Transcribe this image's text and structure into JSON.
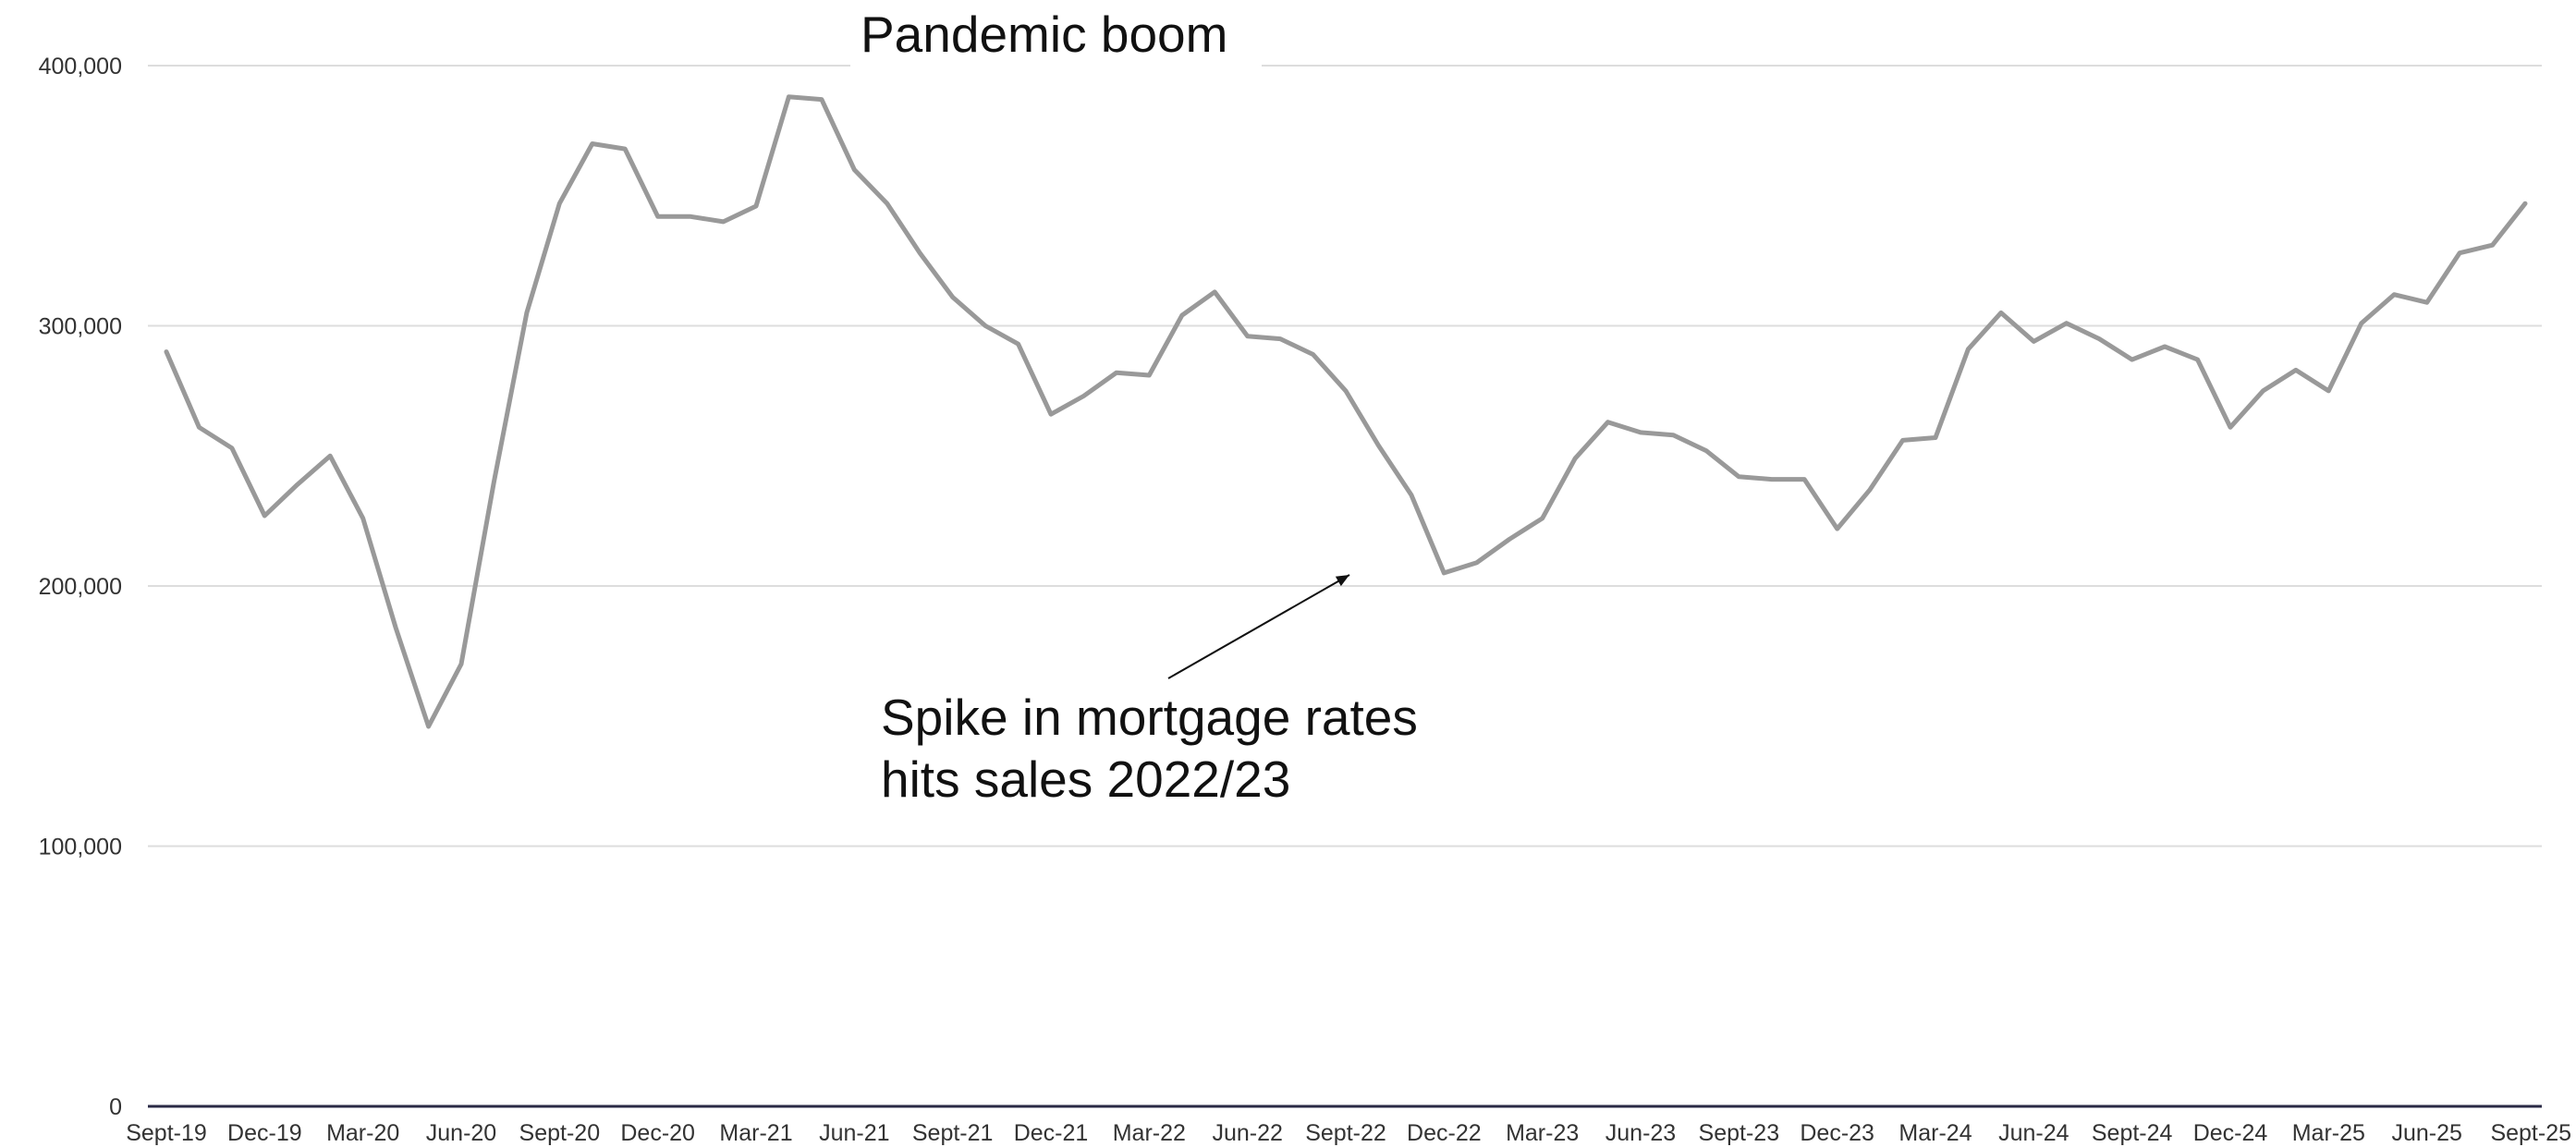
{
  "colors": {
    "line": "#999999",
    "grid": "#dddddd",
    "axis": "#2a2a45",
    "text": "#333333",
    "annotation": "#111111"
  },
  "chart_data": {
    "type": "line",
    "title": "",
    "xlabel": "",
    "ylabel": "",
    "ylim": [
      0,
      400000
    ],
    "grid": true,
    "y_ticks": [
      "0",
      "100,000",
      "200,000",
      "300,000",
      "400,000"
    ],
    "x_ticks": [
      "Sept-19",
      "Dec-19",
      "Mar-20",
      "Jun-20",
      "Sept-20",
      "Dec-20",
      "Mar-21",
      "Jun-21",
      "Sept-21",
      "Dec-21",
      "Mar-22",
      "Jun-22",
      "Sept-22",
      "Dec-22",
      "Mar-23",
      "Jun-23",
      "Sept-23",
      "Dec-23",
      "Mar-24",
      "Jun-24",
      "Sept-24",
      "Dec-24",
      "Mar-25",
      "Jun-25",
      "Sept-25"
    ],
    "series": [
      {
        "values": [
          290000,
          261000,
          253000,
          227000,
          239000,
          250000,
          226000,
          184000,
          146000,
          170000,
          240000,
          305000,
          347000,
          370000,
          368000,
          342000,
          342000,
          340000,
          346000,
          388000,
          387000,
          360000,
          347000,
          328000,
          311000,
          300000,
          293000,
          266000,
          273000,
          282000,
          281000,
          304000,
          313000,
          296000,
          295000,
          289000,
          275000,
          254000,
          235000,
          205000,
          209000,
          218000,
          226000,
          249000,
          263000,
          259000,
          258000,
          252000,
          242000,
          241000,
          241000,
          222000,
          237000,
          256000,
          257000,
          291000,
          305000,
          294000,
          301000,
          295000,
          287000,
          292000,
          287000,
          261000,
          275000,
          283000,
          275000,
          301000,
          312000,
          309000,
          328000,
          331000,
          347000
        ]
      }
    ],
    "annotations": [
      {
        "text": "Pandemic boom",
        "points_to": "Mar-21"
      },
      {
        "lines": [
          "Spike in mortgage rates",
          "hits sales 2022/23"
        ],
        "points_to": "Dec-22"
      }
    ]
  }
}
